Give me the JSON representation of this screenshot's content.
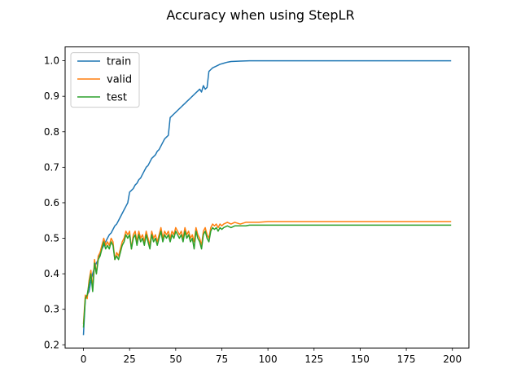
{
  "chart_data": {
    "type": "line",
    "title": "Accuracy when using StepLR",
    "xlabel": "",
    "ylabel": "",
    "xlim": [
      -9.95,
      208.95
    ],
    "ylim": [
      0.191,
      1.039
    ],
    "xticks": [
      0,
      25,
      50,
      75,
      100,
      125,
      150,
      175,
      200
    ],
    "yticks": [
      0.2,
      0.3,
      0.4,
      0.5,
      0.6,
      0.7,
      0.8,
      0.9,
      1.0
    ],
    "grid": false,
    "legend": "top-left",
    "series": [
      {
        "name": "train",
        "color": "#1f77b4",
        "points": [
          [
            0,
            0.229
          ],
          [
            1,
            0.33
          ],
          [
            2,
            0.34
          ],
          [
            3,
            0.35
          ],
          [
            4,
            0.38
          ],
          [
            5,
            0.4
          ],
          [
            6,
            0.42
          ],
          [
            7,
            0.43
          ],
          [
            8,
            0.44
          ],
          [
            9,
            0.46
          ],
          [
            10,
            0.47
          ],
          [
            11,
            0.48
          ],
          [
            12,
            0.49
          ],
          [
            13,
            0.5
          ],
          [
            14,
            0.51
          ],
          [
            15,
            0.515
          ],
          [
            16,
            0.525
          ],
          [
            17,
            0.535
          ],
          [
            18,
            0.54
          ],
          [
            19,
            0.55
          ],
          [
            20,
            0.56
          ],
          [
            21,
            0.57
          ],
          [
            22,
            0.58
          ],
          [
            23,
            0.59
          ],
          [
            24,
            0.6
          ],
          [
            25,
            0.63
          ],
          [
            26,
            0.635
          ],
          [
            27,
            0.64
          ],
          [
            28,
            0.65
          ],
          [
            29,
            0.655
          ],
          [
            30,
            0.665
          ],
          [
            31,
            0.67
          ],
          [
            32,
            0.68
          ],
          [
            33,
            0.69
          ],
          [
            34,
            0.7
          ],
          [
            35,
            0.705
          ],
          [
            36,
            0.715
          ],
          [
            37,
            0.725
          ],
          [
            38,
            0.73
          ],
          [
            39,
            0.735
          ],
          [
            40,
            0.745
          ],
          [
            41,
            0.75
          ],
          [
            42,
            0.76
          ],
          [
            43,
            0.77
          ],
          [
            44,
            0.78
          ],
          [
            45,
            0.785
          ],
          [
            46,
            0.79
          ],
          [
            47,
            0.84
          ],
          [
            48,
            0.845
          ],
          [
            49,
            0.85
          ],
          [
            50,
            0.855
          ],
          [
            51,
            0.86
          ],
          [
            52,
            0.865
          ],
          [
            53,
            0.87
          ],
          [
            54,
            0.875
          ],
          [
            55,
            0.88
          ],
          [
            56,
            0.885
          ],
          [
            57,
            0.89
          ],
          [
            58,
            0.895
          ],
          [
            59,
            0.9
          ],
          [
            60,
            0.905
          ],
          [
            61,
            0.91
          ],
          [
            62,
            0.915
          ],
          [
            63,
            0.92
          ],
          [
            64,
            0.912
          ],
          [
            65,
            0.93
          ],
          [
            66,
            0.92
          ],
          [
            67,
            0.925
          ],
          [
            68,
            0.97
          ],
          [
            69,
            0.975
          ],
          [
            70,
            0.98
          ],
          [
            72,
            0.985
          ],
          [
            74,
            0.99
          ],
          [
            76,
            0.993
          ],
          [
            78,
            0.996
          ],
          [
            80,
            0.998
          ],
          [
            85,
            0.999
          ],
          [
            90,
            1.0
          ],
          [
            100,
            1.0
          ],
          [
            125,
            1.0
          ],
          [
            150,
            1.0
          ],
          [
            175,
            1.0
          ],
          [
            199,
            1.0
          ]
        ]
      },
      {
        "name": "valid",
        "color": "#ff7f0e",
        "points": [
          [
            0,
            0.26
          ],
          [
            1,
            0.34
          ],
          [
            2,
            0.33
          ],
          [
            3,
            0.38
          ],
          [
            4,
            0.41
          ],
          [
            5,
            0.36
          ],
          [
            6,
            0.44
          ],
          [
            7,
            0.4
          ],
          [
            8,
            0.45
          ],
          [
            9,
            0.46
          ],
          [
            10,
            0.48
          ],
          [
            11,
            0.5
          ],
          [
            12,
            0.48
          ],
          [
            13,
            0.49
          ],
          [
            14,
            0.48
          ],
          [
            15,
            0.5
          ],
          [
            16,
            0.49
          ],
          [
            17,
            0.44
          ],
          [
            18,
            0.46
          ],
          [
            19,
            0.45
          ],
          [
            20,
            0.47
          ],
          [
            21,
            0.49
          ],
          [
            22,
            0.5
          ],
          [
            23,
            0.52
          ],
          [
            24,
            0.51
          ],
          [
            25,
            0.52
          ],
          [
            26,
            0.47
          ],
          [
            27,
            0.51
          ],
          [
            28,
            0.52
          ],
          [
            29,
            0.49
          ],
          [
            30,
            0.52
          ],
          [
            31,
            0.5
          ],
          [
            32,
            0.51
          ],
          [
            33,
            0.49
          ],
          [
            34,
            0.52
          ],
          [
            35,
            0.5
          ],
          [
            36,
            0.48
          ],
          [
            37,
            0.52
          ],
          [
            38,
            0.5
          ],
          [
            39,
            0.51
          ],
          [
            40,
            0.49
          ],
          [
            41,
            0.51
          ],
          [
            42,
            0.53
          ],
          [
            43,
            0.5
          ],
          [
            44,
            0.52
          ],
          [
            45,
            0.51
          ],
          [
            46,
            0.52
          ],
          [
            47,
            0.5
          ],
          [
            48,
            0.52
          ],
          [
            49,
            0.51
          ],
          [
            50,
            0.53
          ],
          [
            51,
            0.52
          ],
          [
            52,
            0.51
          ],
          [
            53,
            0.52
          ],
          [
            54,
            0.5
          ],
          [
            55,
            0.53
          ],
          [
            56,
            0.51
          ],
          [
            57,
            0.52
          ],
          [
            58,
            0.5
          ],
          [
            59,
            0.51
          ],
          [
            60,
            0.49
          ],
          [
            61,
            0.53
          ],
          [
            62,
            0.51
          ],
          [
            63,
            0.5
          ],
          [
            64,
            0.48
          ],
          [
            65,
            0.52
          ],
          [
            66,
            0.53
          ],
          [
            67,
            0.51
          ],
          [
            68,
            0.5
          ],
          [
            69,
            0.53
          ],
          [
            70,
            0.54
          ],
          [
            71,
            0.535
          ],
          [
            72,
            0.54
          ],
          [
            73,
            0.53
          ],
          [
            74,
            0.54
          ],
          [
            75,
            0.535
          ],
          [
            76,
            0.54
          ],
          [
            78,
            0.545
          ],
          [
            80,
            0.54
          ],
          [
            82,
            0.545
          ],
          [
            85,
            0.54
          ],
          [
            88,
            0.545
          ],
          [
            90,
            0.545
          ],
          [
            95,
            0.545
          ],
          [
            100,
            0.547
          ],
          [
            110,
            0.547
          ],
          [
            125,
            0.547
          ],
          [
            150,
            0.547
          ],
          [
            175,
            0.547
          ],
          [
            199,
            0.547
          ]
        ]
      },
      {
        "name": "test",
        "color": "#2ca02c",
        "points": [
          [
            0,
            0.25
          ],
          [
            1,
            0.33
          ],
          [
            2,
            0.34
          ],
          [
            3,
            0.37
          ],
          [
            4,
            0.4
          ],
          [
            5,
            0.35
          ],
          [
            6,
            0.43
          ],
          [
            7,
            0.4
          ],
          [
            8,
            0.44
          ],
          [
            9,
            0.45
          ],
          [
            10,
            0.47
          ],
          [
            11,
            0.49
          ],
          [
            12,
            0.47
          ],
          [
            13,
            0.48
          ],
          [
            14,
            0.47
          ],
          [
            15,
            0.49
          ],
          [
            16,
            0.48
          ],
          [
            17,
            0.44
          ],
          [
            18,
            0.45
          ],
          [
            19,
            0.44
          ],
          [
            20,
            0.46
          ],
          [
            21,
            0.48
          ],
          [
            22,
            0.49
          ],
          [
            23,
            0.51
          ],
          [
            24,
            0.5
          ],
          [
            25,
            0.51
          ],
          [
            26,
            0.47
          ],
          [
            27,
            0.5
          ],
          [
            28,
            0.51
          ],
          [
            29,
            0.48
          ],
          [
            30,
            0.51
          ],
          [
            31,
            0.49
          ],
          [
            32,
            0.5
          ],
          [
            33,
            0.48
          ],
          [
            34,
            0.51
          ],
          [
            35,
            0.49
          ],
          [
            36,
            0.47
          ],
          [
            37,
            0.51
          ],
          [
            38,
            0.49
          ],
          [
            39,
            0.5
          ],
          [
            40,
            0.48
          ],
          [
            41,
            0.5
          ],
          [
            42,
            0.52
          ],
          [
            43,
            0.49
          ],
          [
            44,
            0.51
          ],
          [
            45,
            0.5
          ],
          [
            46,
            0.51
          ],
          [
            47,
            0.49
          ],
          [
            48,
            0.51
          ],
          [
            49,
            0.5
          ],
          [
            50,
            0.52
          ],
          [
            51,
            0.51
          ],
          [
            52,
            0.5
          ],
          [
            53,
            0.51
          ],
          [
            54,
            0.49
          ],
          [
            55,
            0.52
          ],
          [
            56,
            0.5
          ],
          [
            57,
            0.51
          ],
          [
            58,
            0.49
          ],
          [
            59,
            0.5
          ],
          [
            60,
            0.47
          ],
          [
            61,
            0.52
          ],
          [
            62,
            0.5
          ],
          [
            63,
            0.49
          ],
          [
            64,
            0.47
          ],
          [
            65,
            0.51
          ],
          [
            66,
            0.52
          ],
          [
            67,
            0.5
          ],
          [
            68,
            0.49
          ],
          [
            69,
            0.52
          ],
          [
            70,
            0.53
          ],
          [
            71,
            0.525
          ],
          [
            72,
            0.53
          ],
          [
            73,
            0.52
          ],
          [
            74,
            0.53
          ],
          [
            75,
            0.525
          ],
          [
            76,
            0.53
          ],
          [
            78,
            0.535
          ],
          [
            80,
            0.53
          ],
          [
            82,
            0.535
          ],
          [
            85,
            0.535
          ],
          [
            88,
            0.535
          ],
          [
            90,
            0.537
          ],
          [
            95,
            0.537
          ],
          [
            100,
            0.537
          ],
          [
            110,
            0.537
          ],
          [
            125,
            0.537
          ],
          [
            150,
            0.537
          ],
          [
            175,
            0.537
          ],
          [
            199,
            0.537
          ]
        ]
      }
    ]
  }
}
